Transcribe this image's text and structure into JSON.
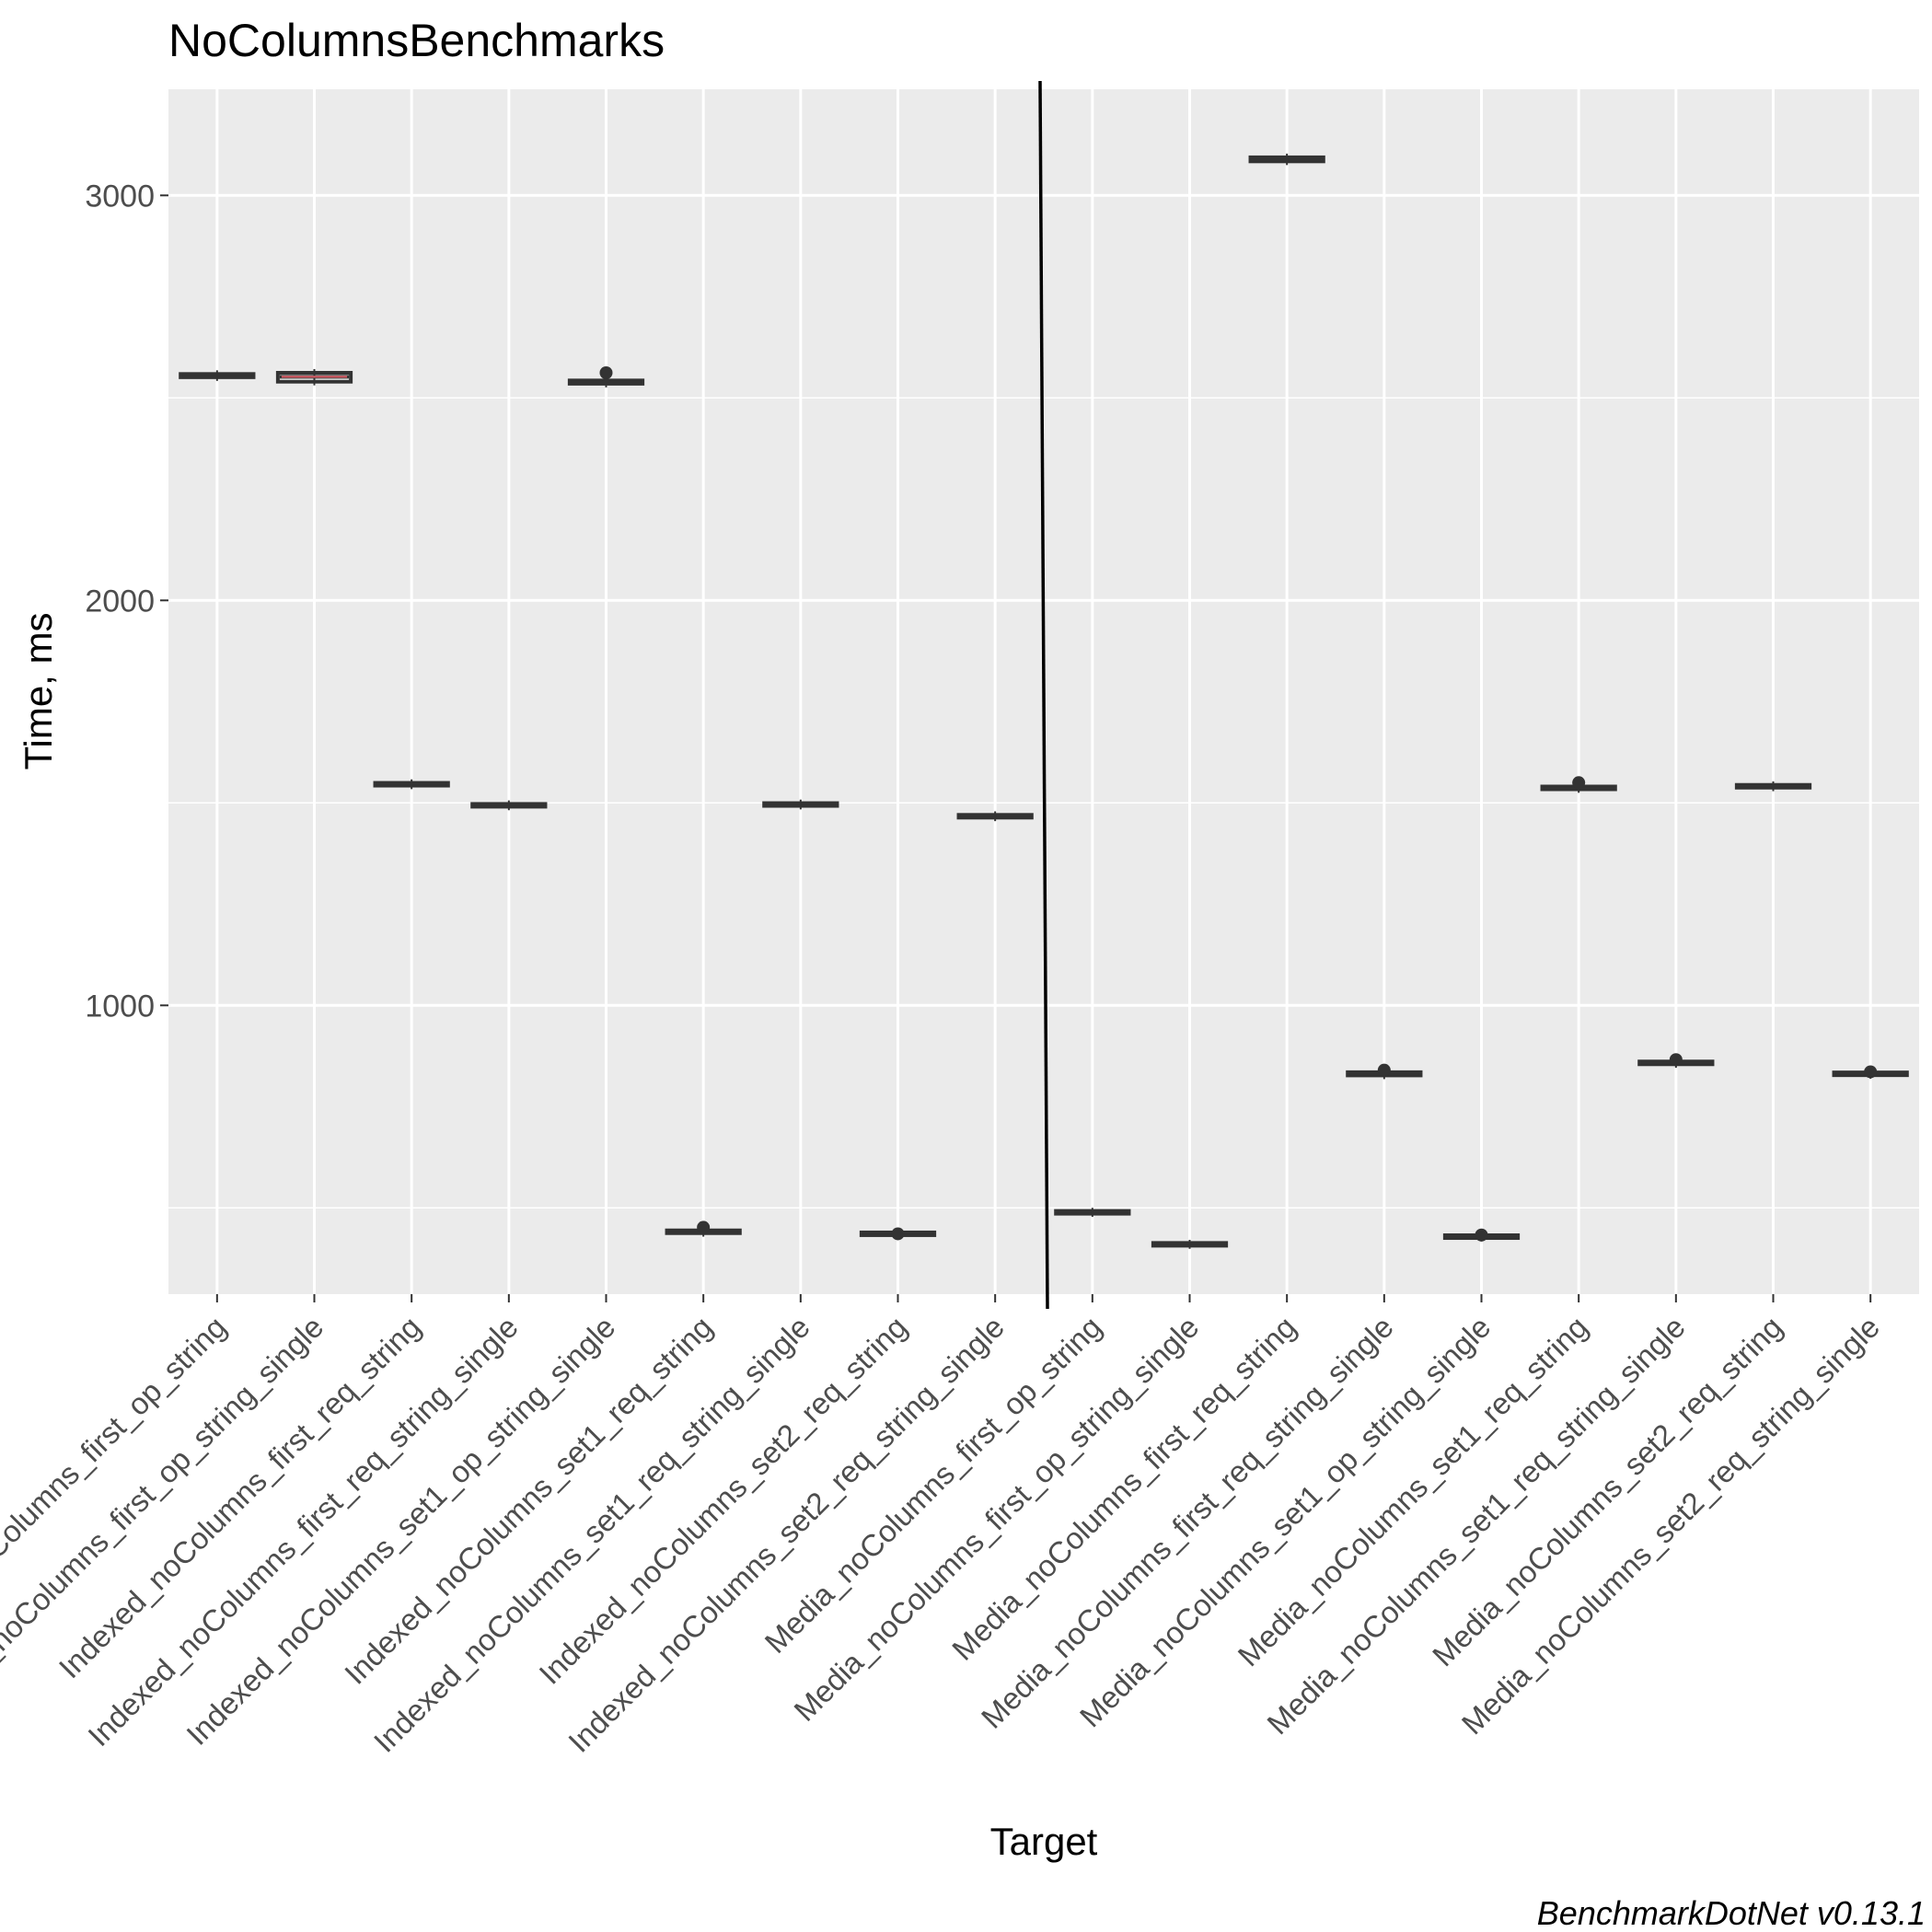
{
  "chart_data": {
    "type": "box",
    "title": "NoColumnsBenchmarks",
    "xlabel": "Target",
    "ylabel": "Time, ms",
    "caption": "BenchmarkDotNet v0.13.1",
    "ylim": [
      287,
      3262
    ],
    "y_ticks": [
      1000,
      2000,
      3000
    ],
    "grid": true,
    "categories": [
      "Indexed_noColumns_first_op_string",
      "Indexed_noColumns_first_op_string_single",
      "Indexed_noColumns_first_req_string",
      "Indexed_noColumns_first_req_string_single",
      "Indexed_noColumns_set1_op_string_single",
      "Indexed_noColumns_set1_req_string",
      "Indexed_noColumns_set1_req_string_single",
      "Indexed_noColumns_set2_req_string",
      "Indexed_noColumns_set2_req_string_single",
      "Media_noColumns_first_op_string",
      "Media_noColumns_first_op_string_single",
      "Media_noColumns_first_req_string",
      "Media_noColumns_first_req_string_single",
      "Media_noColumns_set1_op_string_single",
      "Media_noColumns_set1_req_string",
      "Media_noColumns_set1_req_string_single",
      "Media_noColumns_set2_req_string",
      "Media_noColumns_set2_req_string_single"
    ],
    "values": [
      {
        "q1": 2551,
        "median": 2555,
        "q3": 2559,
        "outliers": []
      },
      {
        "q1": 2540,
        "median": 2552,
        "q3": 2562,
        "outliers": []
      },
      {
        "q1": 1543,
        "median": 1546,
        "q3": 1549,
        "outliers": []
      },
      {
        "q1": 1491,
        "median": 1494,
        "q3": 1497,
        "outliers": []
      },
      {
        "q1": 2535,
        "median": 2539,
        "q3": 2543,
        "outliers": [
          2562
        ]
      },
      {
        "q1": 438,
        "median": 441,
        "q3": 444,
        "outliers": [
          452
        ]
      },
      {
        "q1": 1493,
        "median": 1496,
        "q3": 1499,
        "outliers": []
      },
      {
        "q1": 433,
        "median": 436,
        "q3": 439,
        "outliers": [
          436
        ]
      },
      {
        "q1": 1464,
        "median": 1467,
        "q3": 1470,
        "outliers": []
      },
      {
        "q1": 487,
        "median": 489,
        "q3": 491,
        "outliers": []
      },
      {
        "q1": 408,
        "median": 410,
        "q3": 412,
        "outliers": []
      },
      {
        "q1": 3084,
        "median": 3089,
        "q3": 3094,
        "outliers": []
      },
      {
        "q1": 827,
        "median": 831,
        "q3": 835,
        "outliers": [
          840
        ]
      },
      {
        "q1": 426,
        "median": 429,
        "q3": 432,
        "outliers": [
          433
        ]
      },
      {
        "q1": 1534,
        "median": 1537,
        "q3": 1540,
        "outliers": [
          1550
        ]
      },
      {
        "q1": 855,
        "median": 858,
        "q3": 861,
        "outliers": [
          866
        ]
      },
      {
        "q1": 1538,
        "median": 1541,
        "q3": 1544,
        "outliers": []
      },
      {
        "q1": 828,
        "median": 831,
        "q3": 834,
        "outliers": [
          836
        ]
      }
    ],
    "separator_after_category_index": 8
  },
  "colors": {
    "panel_background": "#ebebeb",
    "grid_major": "#ffffff",
    "box_stroke": "#333333",
    "median_line": "#e0606a",
    "separator": "#000000",
    "tick_text": "#4d4d4d",
    "text": "#000000"
  }
}
